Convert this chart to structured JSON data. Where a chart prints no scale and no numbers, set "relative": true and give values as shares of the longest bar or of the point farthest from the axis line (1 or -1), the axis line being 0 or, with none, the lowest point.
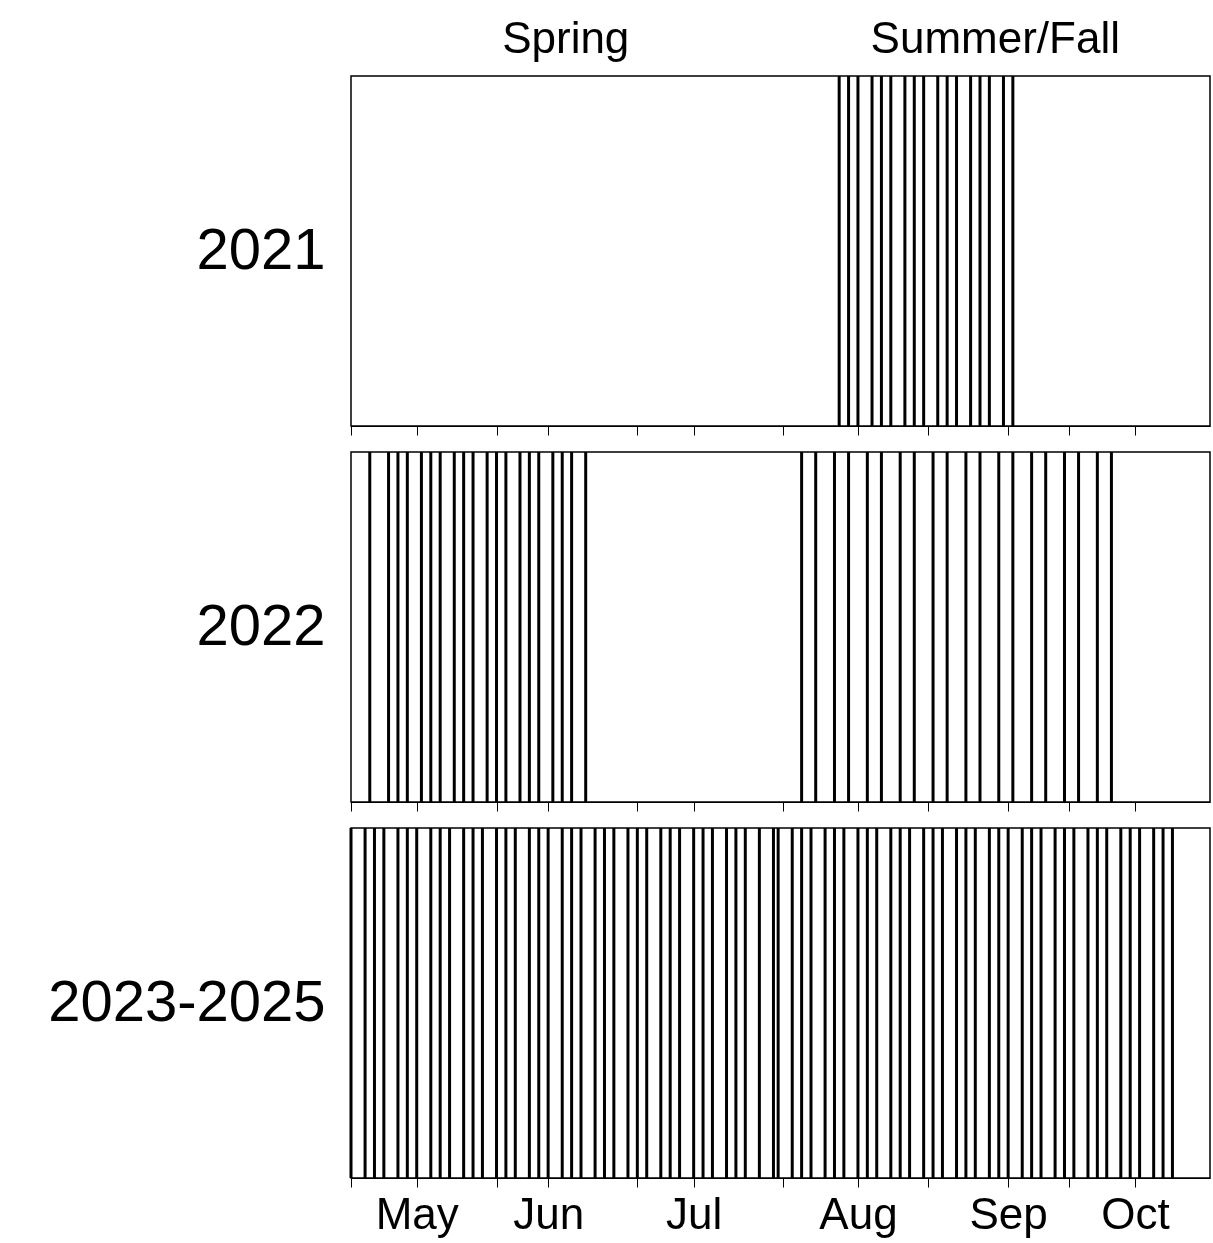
{
  "chart_data": [
    {
      "type": "bar",
      "relative": true,
      "ylabel": "2021",
      "tick_labels": false,
      "color": "#000000",
      "annotations": [
        "Spring",
        "Summer/Fall"
      ],
      "xlim": [
        "--05-01",
        "--10-31"
      ],
      "xticks": [
        {
          "value": "--05-01",
          "label": null
        },
        {
          "value": "--05-15",
          "label": "May"
        },
        {
          "value": "--06-01",
          "label": null
        },
        {
          "value": "--06-12",
          "label": "Jun"
        },
        {
          "value": "--07-01",
          "label": null
        },
        {
          "value": "--07-13",
          "label": "Jul"
        },
        {
          "value": "--08-01",
          "label": null
        },
        {
          "value": "--08-17",
          "label": "Aug"
        },
        {
          "value": "--09-01",
          "label": null
        },
        {
          "value": "--09-18",
          "label": "Sep"
        },
        {
          "value": "--10-01",
          "label": null
        },
        {
          "value": "--10-15",
          "label": "Oct"
        }
      ],
      "x": [
        "--08-13",
        "--08-15",
        "--08-17",
        "--08-20",
        "--08-22",
        "--08-24",
        "--08-27",
        "--08-29",
        "--08-31",
        "--09-03",
        "--09-05",
        "--09-07",
        "--09-10",
        "--09-12",
        "--09-14",
        "--09-17",
        "--09-19"
      ],
      "values": [
        1,
        1,
        1,
        1,
        1,
        1,
        1,
        1,
        1,
        1,
        1,
        1,
        1,
        1,
        1,
        1,
        1
      ]
    },
    {
      "type": "bar",
      "relative": true,
      "ylabel": "2022",
      "tick_labels": false,
      "color": "#000000",
      "xlim": [
        "--05-01",
        "--10-31"
      ],
      "xticks": [
        {
          "value": "--05-01",
          "label": null
        },
        {
          "value": "--05-15",
          "label": "May"
        },
        {
          "value": "--06-01",
          "label": null
        },
        {
          "value": "--06-12",
          "label": "Jun"
        },
        {
          "value": "--07-01",
          "label": null
        },
        {
          "value": "--07-13",
          "label": "Jul"
        },
        {
          "value": "--08-01",
          "label": null
        },
        {
          "value": "--08-17",
          "label": "Aug"
        },
        {
          "value": "--09-01",
          "label": null
        },
        {
          "value": "--09-18",
          "label": "Sep"
        },
        {
          "value": "--10-01",
          "label": null
        },
        {
          "value": "--10-15",
          "label": "Oct"
        }
      ],
      "x": [
        "--05-05",
        "--05-09",
        "--05-11",
        "--05-13",
        "--05-16",
        "--05-18",
        "--05-20",
        "--05-23",
        "--05-25",
        "--05-27",
        "--05-30",
        "--06-01",
        "--06-03",
        "--06-06",
        "--06-08",
        "--06-10",
        "--06-13",
        "--06-15",
        "--06-17",
        "--06-20",
        "--08-05",
        "--08-08",
        "--08-12",
        "--08-15",
        "--08-19",
        "--08-22",
        "--08-26",
        "--08-29",
        "--09-02",
        "--09-05",
        "--09-09",
        "--09-12",
        "--09-16",
        "--09-19",
        "--09-23",
        "--09-26",
        "--09-30",
        "--10-03",
        "--10-07",
        "--10-10"
      ],
      "values": [
        1,
        1,
        1,
        1,
        1,
        1,
        1,
        1,
        1,
        1,
        1,
        1,
        1,
        1,
        1,
        1,
        1,
        1,
        1,
        1,
        1,
        1,
        1,
        1,
        1,
        1,
        1,
        1,
        1,
        1,
        1,
        1,
        1,
        1,
        1,
        1,
        1,
        1,
        1,
        1
      ]
    },
    {
      "type": "bar",
      "relative": true,
      "ylabel": "2023-2025",
      "color": "#000000",
      "xlim": [
        "--05-01",
        "--10-31"
      ],
      "xticks": [
        {
          "value": "--05-01",
          "label": null
        },
        {
          "value": "--05-15",
          "label": "May"
        },
        {
          "value": "--06-01",
          "label": null
        },
        {
          "value": "--06-12",
          "label": "Jun"
        },
        {
          "value": "--07-01",
          "label": null
        },
        {
          "value": "--07-13",
          "label": "Jul"
        },
        {
          "value": "--08-01",
          "label": null
        },
        {
          "value": "--08-17",
          "label": "Aug"
        },
        {
          "value": "--09-01",
          "label": null
        },
        {
          "value": "--09-18",
          "label": "Sep"
        },
        {
          "value": "--10-01",
          "label": null
        },
        {
          "value": "--10-15",
          "label": "Oct"
        }
      ],
      "x": [
        "--05-01",
        "--05-04",
        "--05-06",
        "--05-08",
        "--05-11",
        "--05-13",
        "--05-15",
        "--05-18",
        "--05-20",
        "--05-22",
        "--05-25",
        "--05-27",
        "--05-29",
        "--06-01",
        "--06-03",
        "--06-05",
        "--06-08",
        "--06-10",
        "--06-12",
        "--06-15",
        "--06-17",
        "--06-19",
        "--06-22",
        "--06-24",
        "--06-26",
        "--06-29",
        "--07-01",
        "--07-03",
        "--07-06",
        "--07-08",
        "--07-10",
        "--07-13",
        "--07-15",
        "--07-17",
        "--07-20",
        "--07-22",
        "--07-24",
        "--07-27",
        "--07-30",
        "--07-31",
        "--08-03",
        "--08-05",
        "--08-07",
        "--08-10",
        "--08-12",
        "--08-14",
        "--08-17",
        "--08-19",
        "--08-21",
        "--08-24",
        "--08-26",
        "--08-28",
        "--08-31",
        "--09-02",
        "--09-04",
        "--09-07",
        "--09-09",
        "--09-11",
        "--09-14",
        "--09-16",
        "--09-18",
        "--09-21",
        "--09-23",
        "--09-25",
        "--09-28",
        "--09-30",
        "--10-02",
        "--10-05",
        "--10-07",
        "--10-09",
        "--10-12",
        "--10-14",
        "--10-16",
        "--10-19",
        "--10-21",
        "--10-23"
      ],
      "values": [
        1,
        1,
        1,
        1,
        1,
        1,
        1,
        1,
        1,
        1,
        1,
        1,
        1,
        1,
        1,
        1,
        1,
        1,
        1,
        1,
        1,
        1,
        1,
        1,
        1,
        1,
        1,
        1,
        1,
        1,
        1,
        1,
        1,
        1,
        1,
        1,
        1,
        1,
        1,
        1,
        1,
        1,
        1,
        1,
        1,
        1,
        1,
        1,
        1,
        1,
        1,
        1,
        1,
        1,
        1,
        1,
        1,
        1,
        1,
        1,
        1,
        1,
        1,
        1,
        1,
        1,
        1,
        1,
        1,
        1,
        1,
        1,
        1,
        1,
        1,
        1
      ]
    }
  ]
}
